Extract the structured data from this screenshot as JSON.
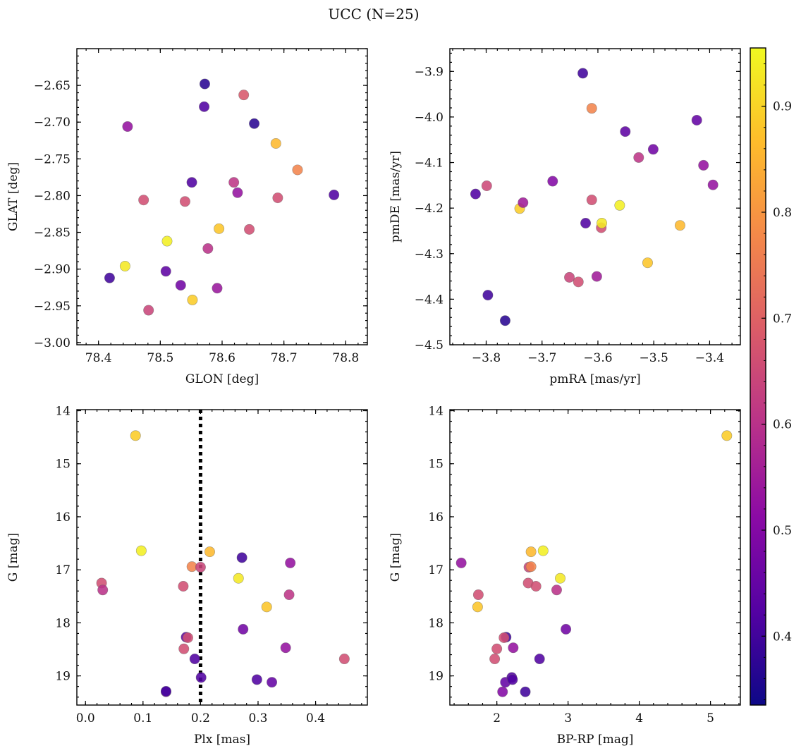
{
  "title": "UCC (N=25)",
  "colorbar": {
    "colormap": "plasma",
    "range": [
      0.335,
      0.955
    ],
    "ticks": [
      "0.4",
      "0.5",
      "0.6",
      "0.7",
      "0.8",
      "0.9"
    ]
  },
  "chart_data": [
    {
      "type": "scatter",
      "xlabel": "GLON [deg]",
      "ylabel": "GLAT [deg]",
      "xlim": [
        78.365,
        78.835
      ],
      "ylim": [
        -3.003,
        -2.6
      ],
      "xticks": [
        "78.4",
        "78.5",
        "78.6",
        "78.7",
        "78.8"
      ],
      "yticks": [
        "−2.65",
        "−2.70",
        "−2.75",
        "−2.80",
        "−2.85",
        "−2.90",
        "−2.95",
        "−3.00"
      ],
      "y_inverted": false,
      "points": [
        {
          "x": 78.418,
          "y": -2.912,
          "c": 0.4
        },
        {
          "x": 78.443,
          "y": -2.896,
          "c": 0.93
        },
        {
          "x": 78.447,
          "y": -2.706,
          "c": 0.53
        },
        {
          "x": 78.473,
          "y": -2.806,
          "c": 0.66
        },
        {
          "x": 78.481,
          "y": -2.956,
          "c": 0.64
        },
        {
          "x": 78.509,
          "y": -2.903,
          "c": 0.44
        },
        {
          "x": 78.511,
          "y": -2.862,
          "c": 0.94
        },
        {
          "x": 78.533,
          "y": -2.922,
          "c": 0.47
        },
        {
          "x": 78.54,
          "y": -2.808,
          "c": 0.66
        },
        {
          "x": 78.551,
          "y": -2.782,
          "c": 0.42
        },
        {
          "x": 78.552,
          "y": -2.942,
          "c": 0.89
        },
        {
          "x": 78.571,
          "y": -2.679,
          "c": 0.42
        },
        {
          "x": 78.572,
          "y": -2.648,
          "c": 0.37
        },
        {
          "x": 78.577,
          "y": -2.872,
          "c": 0.6
        },
        {
          "x": 78.592,
          "y": -2.926,
          "c": 0.54
        },
        {
          "x": 78.595,
          "y": -2.845,
          "c": 0.88
        },
        {
          "x": 78.619,
          "y": -2.782,
          "c": 0.61
        },
        {
          "x": 78.625,
          "y": -2.796,
          "c": 0.53
        },
        {
          "x": 78.635,
          "y": -2.663,
          "c": 0.68
        },
        {
          "x": 78.644,
          "y": -2.846,
          "c": 0.66
        },
        {
          "x": 78.652,
          "y": -2.702,
          "c": 0.37
        },
        {
          "x": 78.687,
          "y": -2.729,
          "c": 0.86
        },
        {
          "x": 78.69,
          "y": -2.803,
          "c": 0.66
        },
        {
          "x": 78.722,
          "y": -2.765,
          "c": 0.77
        },
        {
          "x": 78.781,
          "y": -2.799,
          "c": 0.42
        }
      ]
    },
    {
      "type": "scatter",
      "xlabel": "pmRA [mas/yr]",
      "ylabel": "pmDE [mas/yr]",
      "xlim": [
        -3.865,
        -3.345
      ],
      "ylim": [
        -4.5,
        -3.85
      ],
      "xticks": [
        "−3.8",
        "−3.7",
        "−3.6",
        "−3.5",
        "−3.4"
      ],
      "yticks": [
        "−3.9",
        "−4.0",
        "−4.1",
        "−4.2",
        "−4.3",
        "−4.4",
        "−4.5"
      ],
      "y_inverted": false,
      "points": [
        {
          "x": -3.819,
          "y": -4.169,
          "c": 0.42
        },
        {
          "x": -3.799,
          "y": -4.151,
          "c": 0.65
        },
        {
          "x": -3.797,
          "y": -4.391,
          "c": 0.4
        },
        {
          "x": -3.766,
          "y": -4.447,
          "c": 0.37
        },
        {
          "x": -3.74,
          "y": -4.201,
          "c": 0.89
        },
        {
          "x": -3.734,
          "y": -4.188,
          "c": 0.55
        },
        {
          "x": -3.681,
          "y": -4.141,
          "c": 0.5
        },
        {
          "x": -3.651,
          "y": -4.352,
          "c": 0.64
        },
        {
          "x": -3.635,
          "y": -4.362,
          "c": 0.66
        },
        {
          "x": -3.627,
          "y": -3.904,
          "c": 0.4
        },
        {
          "x": -3.622,
          "y": -4.233,
          "c": 0.42
        },
        {
          "x": -3.611,
          "y": -3.981,
          "c": 0.77
        },
        {
          "x": -3.611,
          "y": -4.182,
          "c": 0.66
        },
        {
          "x": -3.602,
          "y": -4.35,
          "c": 0.55
        },
        {
          "x": -3.594,
          "y": -4.243,
          "c": 0.66
        },
        {
          "x": -3.593,
          "y": -4.233,
          "c": 0.93
        },
        {
          "x": -3.561,
          "y": -4.194,
          "c": 0.94
        },
        {
          "x": -3.551,
          "y": -4.032,
          "c": 0.44
        },
        {
          "x": -3.527,
          "y": -4.089,
          "c": 0.61
        },
        {
          "x": -3.511,
          "y": -4.32,
          "c": 0.88
        },
        {
          "x": -3.501,
          "y": -4.071,
          "c": 0.47
        },
        {
          "x": -3.453,
          "y": -4.238,
          "c": 0.86
        },
        {
          "x": -3.423,
          "y": -4.007,
          "c": 0.45
        },
        {
          "x": -3.411,
          "y": -4.106,
          "c": 0.53
        },
        {
          "x": -3.394,
          "y": -4.149,
          "c": 0.53
        }
      ]
    },
    {
      "type": "scatter",
      "xlabel": "Plx [mas]",
      "ylabel": "G [mag]",
      "xlim": [
        -0.015,
        0.49
      ],
      "ylim": [
        19.55,
        13.98
      ],
      "xticks": [
        "0.0",
        "0.1",
        "0.2",
        "0.3",
        "0.4"
      ],
      "yticks": [
        "14",
        "15",
        "16",
        "17",
        "18",
        "19"
      ],
      "y_inverted": true,
      "vline": {
        "x": 0.2,
        "style": "dotted"
      },
      "points": [
        {
          "x": 0.028,
          "y": 17.25,
          "c": 0.66
        },
        {
          "x": 0.03,
          "y": 17.38,
          "c": 0.6
        },
        {
          "x": 0.087,
          "y": 14.47,
          "c": 0.89
        },
        {
          "x": 0.097,
          "y": 16.64,
          "c": 0.94
        },
        {
          "x": 0.14,
          "y": 19.3,
          "c": 0.5
        },
        {
          "x": 0.14,
          "y": 19.29,
          "c": 0.4
        },
        {
          "x": 0.17,
          "y": 17.31,
          "c": 0.66
        },
        {
          "x": 0.171,
          "y": 18.49,
          "c": 0.66
        },
        {
          "x": 0.175,
          "y": 18.27,
          "c": 0.44
        },
        {
          "x": 0.178,
          "y": 18.28,
          "c": 0.66
        },
        {
          "x": 0.185,
          "y": 16.94,
          "c": 0.77
        },
        {
          "x": 0.19,
          "y": 18.68,
          "c": 0.42
        },
        {
          "x": 0.2,
          "y": 16.95,
          "c": 0.64
        },
        {
          "x": 0.201,
          "y": 19.03,
          "c": 0.42
        },
        {
          "x": 0.216,
          "y": 16.66,
          "c": 0.86
        },
        {
          "x": 0.266,
          "y": 17.16,
          "c": 0.93
        },
        {
          "x": 0.272,
          "y": 16.77,
          "c": 0.4
        },
        {
          "x": 0.274,
          "y": 18.12,
          "c": 0.47
        },
        {
          "x": 0.298,
          "y": 19.07,
          "c": 0.42
        },
        {
          "x": 0.315,
          "y": 17.7,
          "c": 0.88
        },
        {
          "x": 0.324,
          "y": 19.12,
          "c": 0.45
        },
        {
          "x": 0.348,
          "y": 18.47,
          "c": 0.53
        },
        {
          "x": 0.354,
          "y": 17.47,
          "c": 0.61
        },
        {
          "x": 0.356,
          "y": 16.87,
          "c": 0.53
        },
        {
          "x": 0.45,
          "y": 18.68,
          "c": 0.66
        }
      ]
    },
    {
      "type": "scatter",
      "xlabel": "BP-RP [mag]",
      "ylabel": "G [mag]",
      "xlim": [
        1.34,
        5.42
      ],
      "ylim": [
        19.55,
        13.98
      ],
      "xticks": [
        "2",
        "3",
        "4",
        "5"
      ],
      "yticks": [
        "14",
        "15",
        "16",
        "17",
        "18",
        "19"
      ],
      "y_inverted": true,
      "points": [
        {
          "x": 1.5,
          "y": 16.87,
          "c": 0.53
        },
        {
          "x": 1.74,
          "y": 17.47,
          "c": 0.66
        },
        {
          "x": 1.73,
          "y": 17.7,
          "c": 0.88
        },
        {
          "x": 1.97,
          "y": 18.68,
          "c": 0.66
        },
        {
          "x": 2.0,
          "y": 18.49,
          "c": 0.66
        },
        {
          "x": 2.08,
          "y": 19.3,
          "c": 0.5
        },
        {
          "x": 2.12,
          "y": 19.12,
          "c": 0.45
        },
        {
          "x": 2.13,
          "y": 18.27,
          "c": 0.4
        },
        {
          "x": 2.1,
          "y": 18.28,
          "c": 0.66
        },
        {
          "x": 2.21,
          "y": 19.03,
          "c": 0.42
        },
        {
          "x": 2.22,
          "y": 19.07,
          "c": 0.42
        },
        {
          "x": 2.23,
          "y": 18.47,
          "c": 0.53
        },
        {
          "x": 2.4,
          "y": 19.3,
          "c": 0.4
        },
        {
          "x": 2.44,
          "y": 17.25,
          "c": 0.66
        },
        {
          "x": 2.45,
          "y": 16.95,
          "c": 0.64
        },
        {
          "x": 2.48,
          "y": 16.94,
          "c": 0.77
        },
        {
          "x": 2.48,
          "y": 16.66,
          "c": 0.86
        },
        {
          "x": 2.55,
          "y": 17.31,
          "c": 0.66
        },
        {
          "x": 2.6,
          "y": 18.68,
          "c": 0.42
        },
        {
          "x": 2.65,
          "y": 16.64,
          "c": 0.94
        },
        {
          "x": 2.84,
          "y": 17.38,
          "c": 0.6
        },
        {
          "x": 2.89,
          "y": 17.16,
          "c": 0.93
        },
        {
          "x": 2.97,
          "y": 18.12,
          "c": 0.47
        },
        {
          "x": 5.23,
          "y": 14.47,
          "c": 0.89
        }
      ]
    }
  ]
}
